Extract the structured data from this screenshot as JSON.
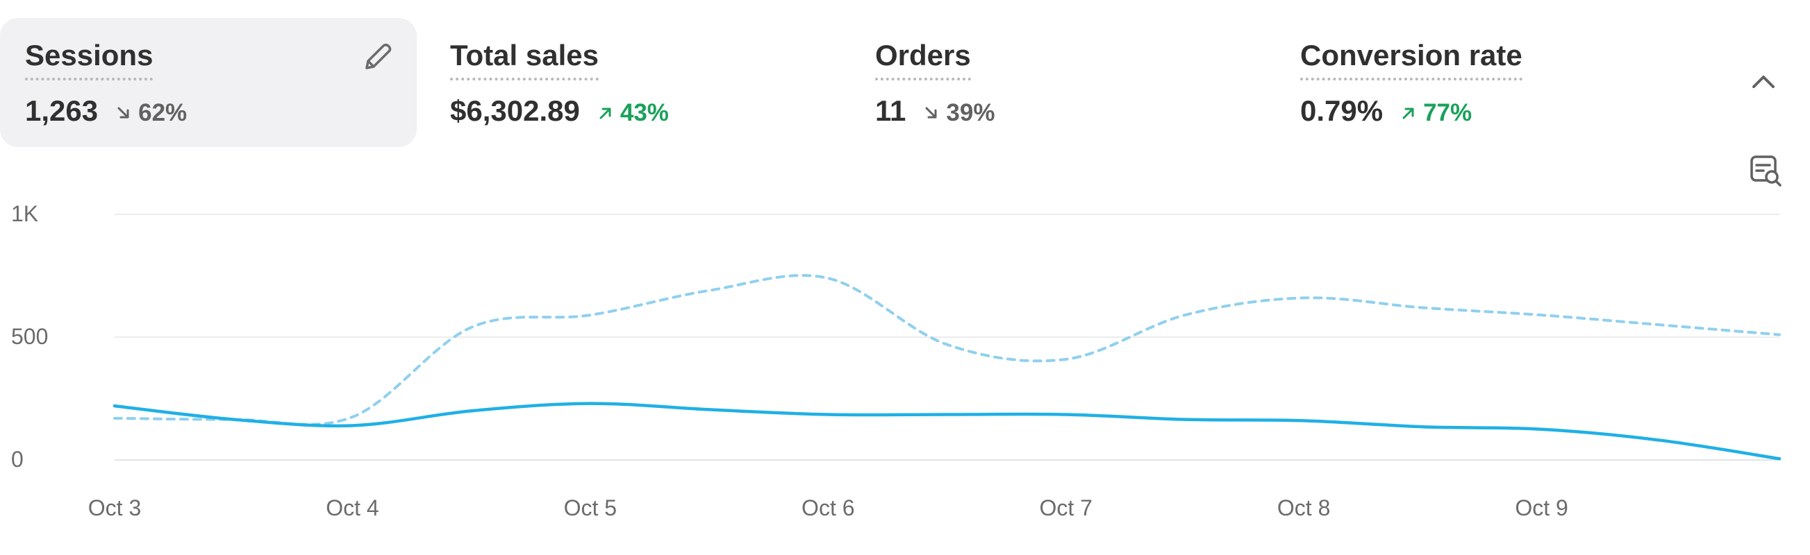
{
  "metrics": [
    {
      "label": "Sessions",
      "value": "1,263",
      "change": "62%",
      "direction": "down",
      "selected": true
    },
    {
      "label": "Total sales",
      "value": "$6,302.89",
      "change": "43%",
      "direction": "up",
      "selected": false
    },
    {
      "label": "Orders",
      "value": "11",
      "change": "39%",
      "direction": "down",
      "selected": false
    },
    {
      "label": "Conversion rate",
      "value": "0.79%",
      "change": "77%",
      "direction": "up",
      "selected": false
    }
  ],
  "icons": {
    "edit": "pencil-icon",
    "collapse": "chevron-up-icon",
    "chart_filter": "chart-search-icon",
    "change_up": "arrow-up-right-icon",
    "change_down": "arrow-down-right-icon"
  },
  "colors": {
    "current_series": "#1fb0e6",
    "comparison_series": "#8fd0ee",
    "change_up": "#1aa15a",
    "change_down": "#616161",
    "selected_card": "#f1f0f2"
  },
  "chart_data": {
    "type": "line",
    "x": [
      "Oct 3",
      "Oct 3.5",
      "Oct 4",
      "Oct 4.5",
      "Oct 5",
      "Oct 5.5",
      "Oct 6",
      "Oct 6.5",
      "Oct 7",
      "Oct 7.5",
      "Oct 8",
      "Oct 8.5",
      "Oct 9",
      "Oct 9.5",
      "Oct 10"
    ],
    "x_ticks": [
      "Oct 3",
      "Oct 4",
      "Oct 5",
      "Oct 6",
      "Oct 7",
      "Oct 8",
      "Oct 9"
    ],
    "y_ticks": [
      {
        "value": 0,
        "label": "0"
      },
      {
        "value": 500,
        "label": "500"
      },
      {
        "value": 1000,
        "label": "1K"
      }
    ],
    "ylim": [
      0,
      1000
    ],
    "grid": true,
    "series": [
      {
        "style": "solid",
        "values": [
          220,
          165,
          140,
          200,
          230,
          205,
          185,
          185,
          185,
          165,
          160,
          135,
          125,
          80,
          5
        ]
      },
      {
        "style": "dashed",
        "values": [
          170,
          165,
          175,
          540,
          590,
          690,
          740,
          470,
          410,
          590,
          660,
          620,
          590,
          550,
          510
        ]
      }
    ]
  }
}
